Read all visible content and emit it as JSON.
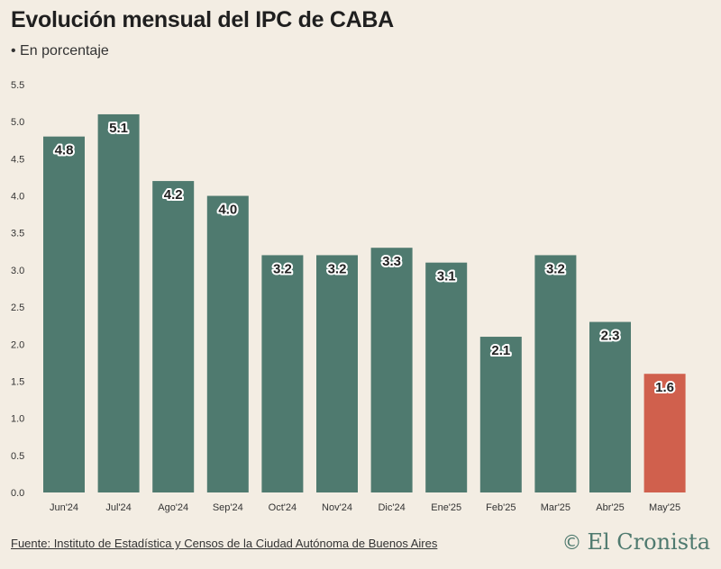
{
  "chart_data": {
    "type": "bar",
    "title": "Evolución mensual del IPC de CABA",
    "subtitle": "• En porcentaje",
    "categories": [
      "Jun'24",
      "Jul'24",
      "Ago'24",
      "Sep'24",
      "Oct'24",
      "Nov'24",
      "Dic'24",
      "Ene'25",
      "Feb'25",
      "Mar'25",
      "Abr'25",
      "May'25"
    ],
    "values": [
      4.8,
      5.1,
      4.2,
      4.0,
      3.2,
      3.2,
      3.3,
      3.1,
      2.1,
      3.2,
      2.3,
      1.6
    ],
    "data_labels": [
      "4.8",
      "5.1",
      "4.2",
      "4.0",
      "3.2",
      "3.2",
      "3.3",
      "3.1",
      "2.1",
      "3.2",
      "2.3",
      "1.6"
    ],
    "yticks": [
      "0.0",
      "0.5",
      "1.0",
      "1.5",
      "2.0",
      "2.5",
      "3.0",
      "3.5",
      "4.0",
      "4.5",
      "5.0",
      "5.5"
    ],
    "ylim": [
      0,
      5.5
    ],
    "grid": false,
    "bar_color": "#4f7a6f",
    "highlight_color": "#d0604d",
    "highlight_index": 11
  },
  "footer": {
    "source": "Fuente: Instituto de Estadística y Censos de la Ciudad Autónoma de Buenos Aires",
    "logo_symbol": "©",
    "logo_text": "El Cronista"
  }
}
